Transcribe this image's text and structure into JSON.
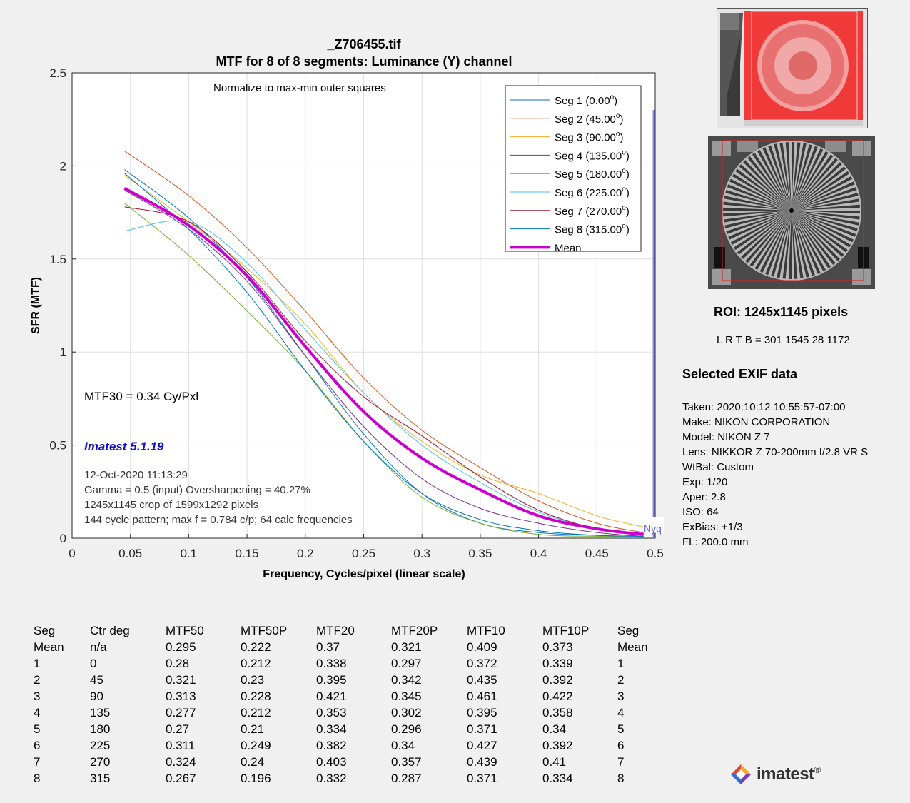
{
  "chart_data": {
    "type": "line",
    "title": "_Z706455.tif",
    "subtitle": "MTF for 8 of 8 segments:  Luminance (Y) channel",
    "xlabel": "Frequency, Cycles/pixel (linear scale)",
    "ylabel": "SFR (MTF)",
    "xlim": [
      0,
      0.5
    ],
    "ylim": [
      0,
      2.5
    ],
    "x_ticks": [
      "0",
      "0.05",
      "0.1",
      "0.15",
      "0.2",
      "0.25",
      "0.3",
      "0.35",
      "0.4",
      "0.45",
      "0.5"
    ],
    "y_ticks": [
      "0",
      "0.5",
      "1",
      "1.5",
      "2",
      "2.5"
    ],
    "grid": true,
    "legend_position": "top-right",
    "annotations": {
      "normalize": "Normalize to max-min outer squares",
      "mtf30": "MTF30 = 0.34 Cy/Pxl",
      "version": "Imatest 5.1.19",
      "info_lines": [
        "12-Oct-2020 11:13:29",
        "Gamma = 0.5 (input)  Oversharpening = 40.27%",
        "1245x1145 crop of 1599x1292 pixels",
        "144 cycle pattern; max f = 0.784 c/p;  64 calc frequencies"
      ],
      "nyquist_label": "Nyq",
      "nyquist_x": 0.5
    },
    "x": [
      0.045,
      0.1,
      0.15,
      0.2,
      0.25,
      0.3,
      0.35,
      0.4,
      0.45,
      0.49
    ],
    "series": [
      {
        "name": "Seg 1 (0.00",
        "sup": "o",
        "close": ")",
        "color": "#0072bd",
        "width": 1,
        "values": [
          1.98,
          1.72,
          1.4,
          0.98,
          0.56,
          0.24,
          0.08,
          0.03,
          0.015,
          0.01
        ]
      },
      {
        "name": "Seg 2 (45.00",
        "sup": "o",
        "close": ")",
        "color": "#d95319",
        "width": 1,
        "values": [
          2.08,
          1.84,
          1.56,
          1.22,
          0.86,
          0.58,
          0.38,
          0.2,
          0.08,
          0.03
        ]
      },
      {
        "name": "Seg 3 (90.00",
        "sup": "o",
        "close": ")",
        "color": "#edb120",
        "width": 1,
        "values": [
          1.95,
          1.7,
          1.45,
          1.15,
          0.78,
          0.52,
          0.34,
          0.24,
          0.12,
          0.06
        ]
      },
      {
        "name": "Seg 4 (135.00",
        "sup": "o",
        "close": ")",
        "color": "#7e2f8e",
        "width": 1,
        "values": [
          1.87,
          1.66,
          1.38,
          0.98,
          0.6,
          0.32,
          0.16,
          0.08,
          0.03,
          0.01
        ]
      },
      {
        "name": "Seg 5 (180.00",
        "sup": "o",
        "close": ")",
        "color": "#77ac30",
        "width": 1,
        "values": [
          1.8,
          1.52,
          1.22,
          0.9,
          0.52,
          0.22,
          0.08,
          0.02,
          0.01,
          0.005
        ]
      },
      {
        "name": "Seg 6 (225.00",
        "sup": "o",
        "close": ")",
        "color": "#4dbeee",
        "width": 1,
        "values": [
          1.65,
          1.7,
          1.48,
          1.12,
          0.78,
          0.5,
          0.3,
          0.14,
          0.05,
          0.02
        ]
      },
      {
        "name": "Seg 7 (270.00",
        "sup": "o",
        "close": ")",
        "color": "#a2142f",
        "width": 1,
        "values": [
          1.78,
          1.7,
          1.43,
          1.06,
          0.76,
          0.55,
          0.33,
          0.15,
          0.05,
          0.02
        ]
      },
      {
        "name": "Seg 8 (315.00",
        "sup": "o",
        "close": ")",
        "color": "#0072bd",
        "width": 1,
        "values": [
          1.96,
          1.66,
          1.32,
          0.9,
          0.52,
          0.24,
          0.1,
          0.04,
          0.015,
          0.01
        ]
      },
      {
        "name": "Mean",
        "sup": "",
        "close": "",
        "color": "#cc00cc",
        "width": 4,
        "values": [
          1.88,
          1.68,
          1.41,
          1.03,
          0.68,
          0.43,
          0.26,
          0.12,
          0.05,
          0.02
        ]
      }
    ]
  },
  "side_panel": {
    "roi_title": "ROI:  1245x1145 pixels",
    "roi_coords": "L R  T B = 301 1545  28 1172",
    "exif_title": "Selected EXIF data",
    "exif_lines": [
      "Taken: 2020:10:12 10:55:57-07:00",
      "Make:  NIKON CORPORATION",
      "Model: NIKON Z 7",
      "Lens:  NIKKOR Z 70-200mm f/2.8 VR S",
      "WtBal: Custom",
      "Exp:   1/20",
      "Aper:  2.8",
      "ISO:   64",
      "ExBias: +1/3",
      "FL:  200.0 mm"
    ]
  },
  "results_table": {
    "headers": [
      "Seg",
      "Ctr deg",
      "MTF50",
      "MTF50P",
      "MTF20",
      "MTF20P",
      "MTF10",
      "MTF10P",
      "Seg"
    ],
    "rows": [
      [
        "Mean",
        "n/a",
        "0.295",
        "0.222",
        "0.37",
        "0.321",
        "0.409",
        "0.373",
        "Mean"
      ],
      [
        "1",
        "0",
        "0.28",
        "0.212",
        "0.338",
        "0.297",
        "0.372",
        "0.339",
        "1"
      ],
      [
        "2",
        "45",
        "0.321",
        "0.23",
        "0.395",
        "0.342",
        "0.435",
        "0.392",
        "2"
      ],
      [
        "3",
        "90",
        "0.313",
        "0.228",
        "0.421",
        "0.345",
        "0.461",
        "0.422",
        "3"
      ],
      [
        "4",
        "135",
        "0.277",
        "0.212",
        "0.353",
        "0.302",
        "0.395",
        "0.358",
        "4"
      ],
      [
        "5",
        "180",
        "0.27",
        "0.21",
        "0.334",
        "0.296",
        "0.371",
        "0.34",
        "5"
      ],
      [
        "6",
        "225",
        "0.311",
        "0.249",
        "0.382",
        "0.34",
        "0.427",
        "0.392",
        "6"
      ],
      [
        "7",
        "270",
        "0.324",
        "0.24",
        "0.403",
        "0.357",
        "0.439",
        "0.41",
        "7"
      ],
      [
        "8",
        "315",
        "0.267",
        "0.196",
        "0.332",
        "0.287",
        "0.371",
        "0.334",
        "8"
      ]
    ]
  },
  "logo": {
    "text": "imatest",
    "mark": "®"
  },
  "colors": {
    "mean": "#cc00cc",
    "version_text": "#1010c0",
    "nyquist": "#8888ee"
  }
}
